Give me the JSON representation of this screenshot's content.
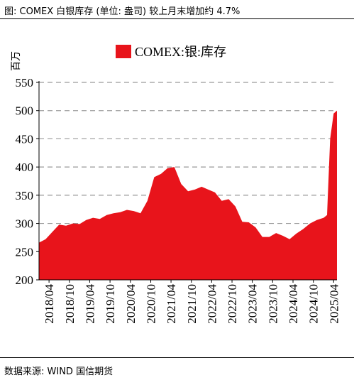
{
  "header": {
    "title": "图: COMEX 白银库存 (单位: 盎司) 较上月末增加约 4.7%"
  },
  "footer": {
    "source": "数据来源: WIND 国信期货"
  },
  "colors": {
    "area": "#e8141b",
    "grid": "#9a9a9a",
    "axis": "#000000"
  },
  "chart_data": {
    "type": "area",
    "title": "",
    "xlabel": "",
    "ylabel": "百万",
    "ylim": [
      200,
      550
    ],
    "yticks": [
      200,
      250,
      300,
      350,
      400,
      450,
      500,
      550
    ],
    "grid": "horizontal dashed",
    "legend_position": "top",
    "x_tick_labels": [
      "2018/04",
      "2018/10",
      "2019/04",
      "2019/10",
      "2020/04",
      "2020/10",
      "2021/04",
      "2021/10",
      "2022/04",
      "2022/10",
      "2023/04",
      "2023/10",
      "2024/04",
      "2024/10",
      "2025/04"
    ],
    "series": [
      {
        "name": "COMEX:银:库存",
        "x": [
          "2018/01",
          "2018/03",
          "2018/05",
          "2018/07",
          "2018/09",
          "2018/11",
          "2019/01",
          "2019/03",
          "2019/05",
          "2019/07",
          "2019/09",
          "2019/11",
          "2020/01",
          "2020/03",
          "2020/05",
          "2020/07",
          "2020/09",
          "2020/11",
          "2021/01",
          "2021/03",
          "2021/05",
          "2021/07",
          "2021/09",
          "2021/11",
          "2022/01",
          "2022/03",
          "2022/05",
          "2022/07",
          "2022/09",
          "2022/11",
          "2023/01",
          "2023/03",
          "2023/05",
          "2023/07",
          "2023/09",
          "2023/11",
          "2024/01",
          "2024/03",
          "2024/05",
          "2024/07",
          "2024/09",
          "2024/11",
          "2025/01",
          "2025/02",
          "2025/03",
          "2025/04",
          "2025/05"
        ],
        "y": [
          266,
          272,
          285,
          298,
          296,
          300,
          299,
          306,
          310,
          308,
          315,
          318,
          320,
          324,
          322,
          318,
          340,
          382,
          388,
          398,
          400,
          370,
          357,
          360,
          365,
          360,
          355,
          340,
          343,
          330,
          303,
          302,
          293,
          276,
          276,
          283,
          278,
          272,
          282,
          290,
          300,
          306,
          310,
          315,
          450,
          495,
          500
        ]
      }
    ]
  }
}
